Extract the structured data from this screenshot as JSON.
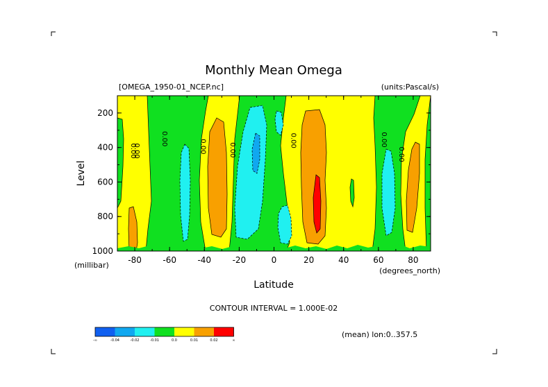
{
  "chart_data": {
    "type": "contour",
    "title": "Monthly Mean Omega",
    "dataset_label": "[OMEGA_1950-01_NCEP.nc]",
    "units_label": "(units:Pascal/s)",
    "xlabel": "Latitude",
    "xunits": "(degrees_north)",
    "ylabel": "Level",
    "yunits": "(millibar)",
    "xlim": [
      -90,
      90
    ],
    "ylim": [
      1000,
      100
    ],
    "x_ticks": [
      -80,
      -60,
      -40,
      -20,
      0,
      20,
      40,
      60,
      80
    ],
    "y_ticks": [
      200,
      400,
      600,
      800,
      1000
    ],
    "contour_interval_label": "CONTOUR INTERVAL = 1.000E-02",
    "mean_label": "(mean) lon:0..357.5",
    "contour_labels": [
      "0.00",
      "0.00",
      "0.00",
      "0.00",
      "0.00",
      "0.00",
      "0.00",
      "0.00"
    ],
    "colorbar": {
      "labels": [
        "-∞",
        "-0.04",
        "-0.02",
        "-0.01",
        "0.0",
        "0.01",
        "0.02",
        "∞"
      ],
      "colors": [
        "#1060f0",
        "#10a8f0",
        "#20f0f0",
        "#10e020",
        "#ffff00",
        "#f8a000",
        "#ff0000"
      ]
    },
    "regions": [
      {
        "level": "0.0 to 0.01",
        "color": "#ffff00",
        "description": "background"
      },
      {
        "level": "-0.01 to 0.0",
        "color": "#10e020",
        "lat_range": [
          -78,
          -30
        ]
      },
      {
        "level": "-0.02 to -0.01",
        "color": "#20f0f0",
        "lat_center": -55
      },
      {
        "level": "0.01 to 0.02",
        "color": "#f8a000",
        "lat_center": -37
      },
      {
        "level": "-0.01 to 0.0",
        "color": "#10e020",
        "lat_range": [
          -28,
          13
        ]
      },
      {
        "level": "-0.02 to -0.01",
        "color": "#20f0f0",
        "lat_range": [
          -20,
          -5
        ]
      },
      {
        "level": "-0.04 to -0.02",
        "color": "#10a8f0",
        "lat_center": -11
      },
      {
        "level": "-0.02 to -0.01",
        "color": "#20f0f0",
        "lat_center": 8
      },
      {
        "level": "0.01 to 0.02",
        "color": "#f8a000",
        "lat_range": [
          17,
          36
        ]
      },
      {
        "level": "0.02 +",
        "color": "#ff0000",
        "lat_center": 26
      },
      {
        "level": "-0.01 to 0.0",
        "color": "#10e020",
        "lat_range": [
          54,
          80
        ]
      },
      {
        "level": "-0.02 to -0.01",
        "color": "#20f0f0",
        "lat_center": 64
      },
      {
        "level": "0.01 to 0.02",
        "color": "#f8a000",
        "lat_center": 84
      }
    ]
  }
}
